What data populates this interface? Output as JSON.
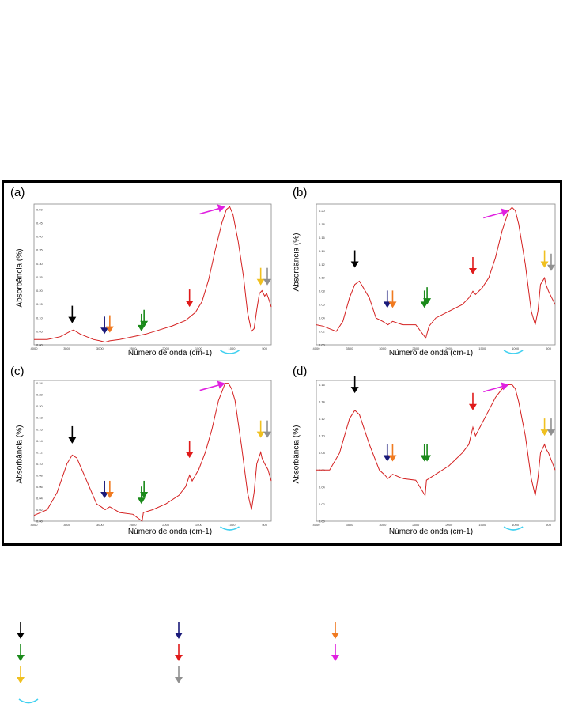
{
  "figure": {
    "panels": [
      {
        "id": "a",
        "letter": "(a)",
        "ylabel": "Absorbância (%)",
        "xlabel": "Número de onda (cm-1)",
        "xticks": [
          "4000",
          "3500",
          "3000",
          "2500",
          "2000",
          "1500",
          "1000",
          "500"
        ],
        "yticks": [
          "0.00",
          "0.05",
          "0.10",
          "0.15",
          "0.20",
          "0.25",
          "0.30",
          "0.35",
          "0.40",
          "0.45",
          "0.50"
        ]
      },
      {
        "id": "b",
        "letter": "(b)",
        "ylabel": "Absorbância (%)",
        "xlabel": "Número de onda (cm-1)",
        "xticks": [
          "4000",
          "3500",
          "3000",
          "2500",
          "2000",
          "1500",
          "1000",
          "500"
        ],
        "yticks": [
          "0.00",
          "0.02",
          "0.04",
          "0.06",
          "0.08",
          "0.10",
          "0.12",
          "0.14",
          "0.16",
          "0.18",
          "0.20"
        ]
      },
      {
        "id": "c",
        "letter": "(c)",
        "ylabel": "Absorbância (%)",
        "xlabel": "Número de onda (cm-1)",
        "xticks": [
          "4000",
          "3500",
          "3000",
          "2500",
          "2000",
          "1500",
          "1000",
          "500"
        ],
        "yticks": [
          "0.00",
          "0.02",
          "0.04",
          "0.06",
          "0.08",
          "0.10",
          "0.12",
          "0.14",
          "0.16",
          "0.18",
          "0.20",
          "0.22",
          "0.24"
        ]
      },
      {
        "id": "d",
        "letter": "(d)",
        "ylabel": "Absorbância (%)",
        "xlabel": "Número de onda (cm-1)",
        "xticks": [
          "4000",
          "3500",
          "3000",
          "2500",
          "2000",
          "1500",
          "1000",
          "500"
        ],
        "yticks": [
          "0.00",
          "0.02",
          "0.04",
          "0.06",
          "0.08",
          "0.10",
          "0.12",
          "0.14",
          "0.16"
        ]
      }
    ]
  },
  "chart_data": [
    {
      "type": "line",
      "panel": "a",
      "line_color": "#d42020",
      "xlim": [
        4000,
        400
      ],
      "ylim": [
        0,
        0.52
      ],
      "x": [
        4000,
        3800,
        3600,
        3450,
        3400,
        3300,
        3100,
        3000,
        2920,
        2850,
        2700,
        2500,
        2300,
        2100,
        1900,
        1700,
        1650,
        1550,
        1450,
        1350,
        1250,
        1150,
        1080,
        1030,
        980,
        900,
        820,
        760,
        700,
        660,
        620,
        580,
        540,
        500,
        470,
        440,
        400
      ],
      "y": [
        0.02,
        0.02,
        0.03,
        0.05,
        0.055,
        0.04,
        0.02,
        0.015,
        0.01,
        0.015,
        0.02,
        0.03,
        0.04,
        0.055,
        0.07,
        0.09,
        0.1,
        0.12,
        0.16,
        0.24,
        0.35,
        0.45,
        0.5,
        0.51,
        0.48,
        0.38,
        0.25,
        0.12,
        0.05,
        0.06,
        0.13,
        0.19,
        0.2,
        0.18,
        0.19,
        0.17,
        0.14
      ]
    },
    {
      "type": "line",
      "panel": "b",
      "line_color": "#d42020",
      "xlim": [
        4000,
        400
      ],
      "ylim": [
        0,
        0.21
      ],
      "x": [
        4000,
        3900,
        3800,
        3700,
        3600,
        3500,
        3420,
        3350,
        3200,
        3100,
        3000,
        2920,
        2850,
        2700,
        2500,
        2350,
        2300,
        2200,
        2000,
        1800,
        1700,
        1640,
        1600,
        1500,
        1400,
        1300,
        1200,
        1100,
        1050,
        1000,
        950,
        850,
        760,
        700,
        660,
        620,
        560,
        540,
        500,
        450,
        400
      ],
      "y": [
        0.03,
        0.028,
        0.024,
        0.02,
        0.035,
        0.07,
        0.09,
        0.095,
        0.07,
        0.04,
        0.035,
        0.03,
        0.035,
        0.03,
        0.03,
        0.01,
        0.028,
        0.04,
        0.05,
        0.06,
        0.07,
        0.08,
        0.075,
        0.085,
        0.1,
        0.13,
        0.17,
        0.2,
        0.205,
        0.2,
        0.18,
        0.12,
        0.05,
        0.03,
        0.05,
        0.09,
        0.1,
        0.09,
        0.08,
        0.07,
        0.06
      ]
    },
    {
      "type": "line",
      "panel": "c",
      "line_color": "#d42020",
      "xlim": [
        4000,
        400
      ],
      "ylim": [
        0,
        0.245
      ],
      "x": [
        4000,
        3800,
        3650,
        3500,
        3420,
        3350,
        3200,
        3050,
        2980,
        2920,
        2850,
        2700,
        2500,
        2360,
        2340,
        2200,
        2000,
        1800,
        1700,
        1640,
        1600,
        1500,
        1400,
        1300,
        1200,
        1100,
        1050,
        1000,
        950,
        850,
        760,
        700,
        660,
        620,
        560,
        540,
        500,
        450,
        400
      ],
      "y": [
        0.01,
        0.02,
        0.05,
        0.1,
        0.115,
        0.11,
        0.07,
        0.03,
        0.025,
        0.02,
        0.025,
        0.015,
        0.012,
        0.0,
        0.015,
        0.02,
        0.03,
        0.045,
        0.06,
        0.08,
        0.07,
        0.09,
        0.12,
        0.16,
        0.21,
        0.24,
        0.24,
        0.23,
        0.21,
        0.13,
        0.05,
        0.02,
        0.05,
        0.1,
        0.12,
        0.11,
        0.1,
        0.09,
        0.07
      ]
    },
    {
      "type": "line",
      "panel": "d",
      "line_color": "#d42020",
      "xlim": [
        4000,
        400
      ],
      "ylim": [
        0,
        0.165
      ],
      "x": [
        4000,
        3800,
        3650,
        3500,
        3420,
        3350,
        3200,
        3050,
        2980,
        2920,
        2850,
        2700,
        2500,
        2360,
        2340,
        2200,
        2000,
        1800,
        1700,
        1640,
        1600,
        1500,
        1400,
        1300,
        1200,
        1100,
        1050,
        1000,
        950,
        850,
        760,
        700,
        660,
        620,
        560,
        540,
        500,
        450,
        400
      ],
      "y": [
        0.06,
        0.06,
        0.08,
        0.12,
        0.13,
        0.125,
        0.09,
        0.06,
        0.055,
        0.05,
        0.055,
        0.05,
        0.048,
        0.03,
        0.048,
        0.055,
        0.065,
        0.08,
        0.09,
        0.11,
        0.1,
        0.115,
        0.13,
        0.145,
        0.155,
        0.16,
        0.16,
        0.155,
        0.14,
        0.1,
        0.05,
        0.03,
        0.05,
        0.08,
        0.09,
        0.085,
        0.08,
        0.07,
        0.06
      ]
    }
  ],
  "markers": {
    "colors": {
      "black": "#000000",
      "navy": "#1a1a7a",
      "orange": "#f07a20",
      "green": "#1a8a1a",
      "red": "#e01a1a",
      "magenta": "#e020e0",
      "yellow": "#f0c020",
      "gray": "#909090",
      "cyan": "#40d0f0"
    },
    "arrows": [
      {
        "panel": "a",
        "color": "black",
        "x": 3420,
        "y": 0.08
      },
      {
        "panel": "a",
        "color": "navy",
        "x": 2930,
        "y": 0.04
      },
      {
        "panel": "a",
        "color": "orange",
        "x": 2850,
        "y": 0.045
      },
      {
        "panel": "a",
        "color": "green",
        "x": 2370,
        "y": 0.05
      },
      {
        "panel": "a",
        "color": "green",
        "x": 2330,
        "y": 0.065
      },
      {
        "panel": "a",
        "color": "red",
        "x": 1640,
        "y": 0.14
      },
      {
        "panel": "a",
        "color": "magenta",
        "x": 1100,
        "y": 0.51,
        "diag": true
      },
      {
        "panel": "a",
        "color": "yellow",
        "x": 560,
        "y": 0.22
      },
      {
        "panel": "a",
        "color": "gray",
        "x": 460,
        "y": 0.22
      },
      {
        "panel": "b",
        "color": "black",
        "x": 3420,
        "y": 0.115
      },
      {
        "panel": "b",
        "color": "navy",
        "x": 2930,
        "y": 0.055
      },
      {
        "panel": "b",
        "color": "orange",
        "x": 2850,
        "y": 0.055
      },
      {
        "panel": "b",
        "color": "green",
        "x": 2370,
        "y": 0.055
      },
      {
        "panel": "b",
        "color": "green",
        "x": 2330,
        "y": 0.06
      },
      {
        "panel": "b",
        "color": "red",
        "x": 1640,
        "y": 0.105
      },
      {
        "panel": "b",
        "color": "magenta",
        "x": 1100,
        "y": 0.2,
        "diag": true
      },
      {
        "panel": "b",
        "color": "yellow",
        "x": 560,
        "y": 0.115
      },
      {
        "panel": "b",
        "color": "gray",
        "x": 460,
        "y": 0.11
      },
      {
        "panel": "c",
        "color": "black",
        "x": 3420,
        "y": 0.135
      },
      {
        "panel": "c",
        "color": "navy",
        "x": 2930,
        "y": 0.04
      },
      {
        "panel": "c",
        "color": "orange",
        "x": 2850,
        "y": 0.04
      },
      {
        "panel": "c",
        "color": "green",
        "x": 2370,
        "y": 0.03
      },
      {
        "panel": "c",
        "color": "green",
        "x": 2330,
        "y": 0.04
      },
      {
        "panel": "c",
        "color": "red",
        "x": 1640,
        "y": 0.11
      },
      {
        "panel": "c",
        "color": "magenta",
        "x": 1100,
        "y": 0.24,
        "diag": true
      },
      {
        "panel": "c",
        "color": "yellow",
        "x": 560,
        "y": 0.145
      },
      {
        "panel": "c",
        "color": "gray",
        "x": 460,
        "y": 0.145
      },
      {
        "panel": "d",
        "color": "black",
        "x": 3420,
        "y": 0.15
      },
      {
        "panel": "d",
        "color": "navy",
        "x": 2930,
        "y": 0.07
      },
      {
        "panel": "d",
        "color": "orange",
        "x": 2850,
        "y": 0.07
      },
      {
        "panel": "d",
        "color": "green",
        "x": 2370,
        "y": 0.07
      },
      {
        "panel": "d",
        "color": "green",
        "x": 2330,
        "y": 0.07
      },
      {
        "panel": "d",
        "color": "red",
        "x": 1640,
        "y": 0.13
      },
      {
        "panel": "d",
        "color": "magenta",
        "x": 1100,
        "y": 0.16,
        "diag": true
      },
      {
        "panel": "d",
        "color": "yellow",
        "x": 560,
        "y": 0.1
      },
      {
        "panel": "d",
        "color": "gray",
        "x": 460,
        "y": 0.1
      }
    ],
    "arcs": [
      {
        "panel": "a",
        "x": 1030
      },
      {
        "panel": "b",
        "x": 1030
      },
      {
        "panel": "c",
        "x": 1030
      },
      {
        "panel": "d",
        "x": 1030
      }
    ]
  },
  "legend": {
    "items": [
      {
        "kind": "arrow",
        "color": "black"
      },
      {
        "kind": "arrow",
        "color": "navy"
      },
      {
        "kind": "arrow",
        "color": "orange"
      },
      {
        "kind": "arrow",
        "color": "green"
      },
      {
        "kind": "arrow",
        "color": "red"
      },
      {
        "kind": "arrow",
        "color": "magenta"
      },
      {
        "kind": "arrow",
        "color": "yellow"
      },
      {
        "kind": "arrow",
        "color": "gray"
      },
      {
        "kind": "arc",
        "color": "cyan"
      }
    ]
  }
}
